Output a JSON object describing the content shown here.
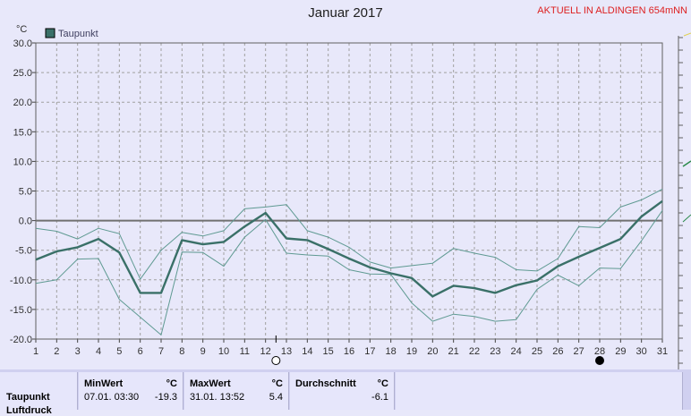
{
  "header": {
    "title": "Januar 2017",
    "station": "AKTUELL IN ALDINGEN 654mNN"
  },
  "colors": {
    "background": "#e8e8fa",
    "plot_background": "#e8e8fa",
    "main_line": "#3a7068",
    "band_line": "#5f9a92",
    "zero_line": "#707070",
    "grid": "#a0a0a0",
    "station_text": "#dd1f1f"
  },
  "chart_data": {
    "type": "line",
    "unit_label": "°C",
    "legend": [
      "Taupunkt"
    ],
    "legend_position": "top-left",
    "grid": true,
    "x": [
      1,
      2,
      3,
      4,
      5,
      6,
      7,
      8,
      9,
      10,
      11,
      12,
      13,
      14,
      15,
      16,
      17,
      18,
      19,
      20,
      21,
      22,
      23,
      24,
      25,
      26,
      27,
      28,
      29,
      30,
      31
    ],
    "xlim": [
      1,
      31
    ],
    "ylim": [
      -20,
      30
    ],
    "y_ticks": [
      "30.0",
      "25.0",
      "20.0",
      "15.0",
      "10.0",
      "5.0",
      "0.0",
      "-5.0",
      "-10.0",
      "-15.0",
      "-20.0"
    ],
    "series": [
      {
        "name": "Taupunkt",
        "role": "mean",
        "values": [
          -6.6,
          -5.2,
          -4.5,
          -3.1,
          -5.4,
          -12.2,
          -12.2,
          -3.3,
          -4.0,
          -3.6,
          -1.0,
          1.3,
          -3.0,
          -3.3,
          -4.8,
          -6.4,
          -7.9,
          -8.9,
          -9.7,
          -12.8,
          -11.0,
          -11.4,
          -12.2,
          -10.9,
          -10.1,
          -7.7,
          -6.1,
          -4.6,
          -3.1,
          0.7,
          3.3
        ]
      },
      {
        "role": "max",
        "values": [
          -1.3,
          -1.8,
          -3.1,
          -1.3,
          -2.2,
          -9.9,
          -5.0,
          -2.0,
          -2.6,
          -1.7,
          2.0,
          2.3,
          2.7,
          -1.7,
          -2.8,
          -4.5,
          -7.0,
          -8.0,
          -7.6,
          -7.2,
          -4.7,
          -5.5,
          -6.2,
          -8.3,
          -8.5,
          -6.4,
          -1.0,
          -1.2,
          2.3,
          3.5,
          5.3
        ]
      },
      {
        "role": "min",
        "values": [
          -10.6,
          -10.0,
          -6.5,
          -6.4,
          -13.3,
          -16.3,
          -19.3,
          -5.3,
          -5.4,
          -7.7,
          -2.8,
          0.2,
          -5.5,
          -5.8,
          -6.0,
          -8.3,
          -9.0,
          -9.1,
          -13.9,
          -17.0,
          -15.8,
          -16.2,
          -17.0,
          -16.7,
          -11.6,
          -9.2,
          -11.0,
          -8.0,
          -8.1,
          -3.4,
          1.7
        ]
      }
    ]
  },
  "summary": {
    "row_label": "Taupunkt",
    "row_label_2": "Luftdruck",
    "min": {
      "header": "MinWert",
      "unit": "°C",
      "time": "07.01.  03:30",
      "value": "-19.3"
    },
    "max": {
      "header": "MaxWert",
      "unit": "°C",
      "time": "31.01.  13:52",
      "value": "5.4"
    },
    "avg": {
      "header": "Durchschnitt",
      "unit": "°C",
      "value": "-6.1"
    }
  }
}
